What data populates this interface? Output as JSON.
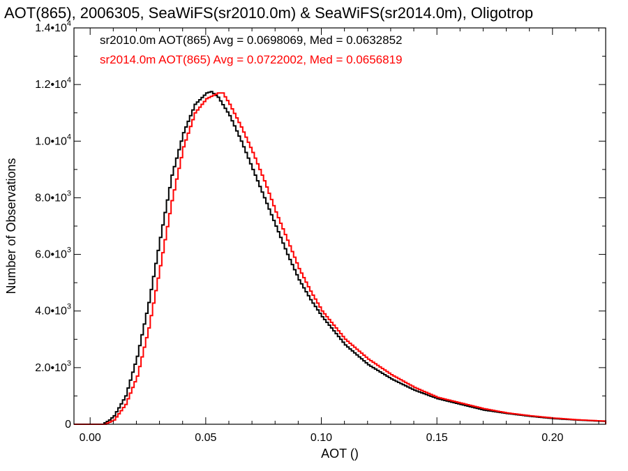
{
  "chart_data": {
    "type": "line",
    "step": true,
    "title": "AOT(865), 2006305, SeaWiFS(sr2010.0m) & SeaWiFS(sr2014.0m), Oligotrop",
    "xlabel": "AOT ()",
    "ylabel": "Number of Observations",
    "xlim": [
      -0.007,
      0.223
    ],
    "ylim": [
      0,
      14000
    ],
    "x_ticks": [
      {
        "value": 0.0,
        "label": "0.00"
      },
      {
        "value": 0.05,
        "label": "0.05"
      },
      {
        "value": 0.1,
        "label": "0.10"
      },
      {
        "value": 0.15,
        "label": "0.15"
      },
      {
        "value": 0.2,
        "label": "0.20"
      }
    ],
    "y_ticks": [
      {
        "value": 0,
        "label": "0",
        "mant": "0",
        "exp": ""
      },
      {
        "value": 2000,
        "label": "2.0•10^3",
        "mant": "2.0•10",
        "exp": "3"
      },
      {
        "value": 4000,
        "label": "4.0•10^3",
        "mant": "4.0•10",
        "exp": "3"
      },
      {
        "value": 6000,
        "label": "6.0•10^3",
        "mant": "6.0•10",
        "exp": "3"
      },
      {
        "value": 8000,
        "label": "8.0•10^3",
        "mant": "8.0•10",
        "exp": "3"
      },
      {
        "value": 10000,
        "label": "1.0•10^4",
        "mant": "1.0•10",
        "exp": "4"
      },
      {
        "value": 12000,
        "label": "1.2•10^4",
        "mant": "1.2•10",
        "exp": "4"
      },
      {
        "value": 14000,
        "label": "1.4•10^4",
        "mant": "1.4•10",
        "exp": "4"
      }
    ],
    "grid": false,
    "legend_position": "top-left",
    "series": [
      {
        "name": "sr2010.0m AOT(865) Avg = 0.0698069, Med = 0.0632852",
        "color": "#000000",
        "x": [
          -0.007,
          0.005,
          0.008,
          0.01,
          0.015,
          0.02,
          0.025,
          0.03,
          0.035,
          0.04,
          0.045,
          0.05,
          0.052,
          0.055,
          0.06,
          0.065,
          0.07,
          0.075,
          0.08,
          0.085,
          0.09,
          0.095,
          0.1,
          0.11,
          0.12,
          0.13,
          0.14,
          0.15,
          0.16,
          0.17,
          0.18,
          0.19,
          0.2,
          0.21,
          0.22,
          0.223
        ],
        "y": [
          0,
          0,
          150,
          300,
          1000,
          2400,
          4300,
          6600,
          8800,
          10300,
          11300,
          11700,
          11750,
          11550,
          10900,
          10000,
          9000,
          8000,
          7000,
          6000,
          5100,
          4400,
          3800,
          2800,
          2100,
          1600,
          1200,
          900,
          700,
          500,
          380,
          280,
          200,
          150,
          110,
          100
        ]
      },
      {
        "name": "sr2014.0m AOT(865) Avg = 0.0722002, Med = 0.0656819",
        "color": "#ff0000",
        "x": [
          -0.007,
          0.006,
          0.01,
          0.015,
          0.02,
          0.025,
          0.03,
          0.035,
          0.04,
          0.045,
          0.05,
          0.055,
          0.057,
          0.06,
          0.065,
          0.07,
          0.075,
          0.08,
          0.085,
          0.09,
          0.095,
          0.1,
          0.11,
          0.12,
          0.13,
          0.14,
          0.15,
          0.16,
          0.17,
          0.18,
          0.19,
          0.2,
          0.21,
          0.22,
          0.223
        ],
        "y": [
          0,
          0,
          150,
          700,
          1700,
          3400,
          5600,
          7900,
          9800,
          11000,
          11500,
          11700,
          11700,
          11300,
          10500,
          9600,
          8600,
          7500,
          6500,
          5500,
          4700,
          4000,
          3000,
          2300,
          1750,
          1300,
          950,
          750,
          550,
          400,
          300,
          220,
          160,
          120,
          110
        ]
      }
    ]
  }
}
